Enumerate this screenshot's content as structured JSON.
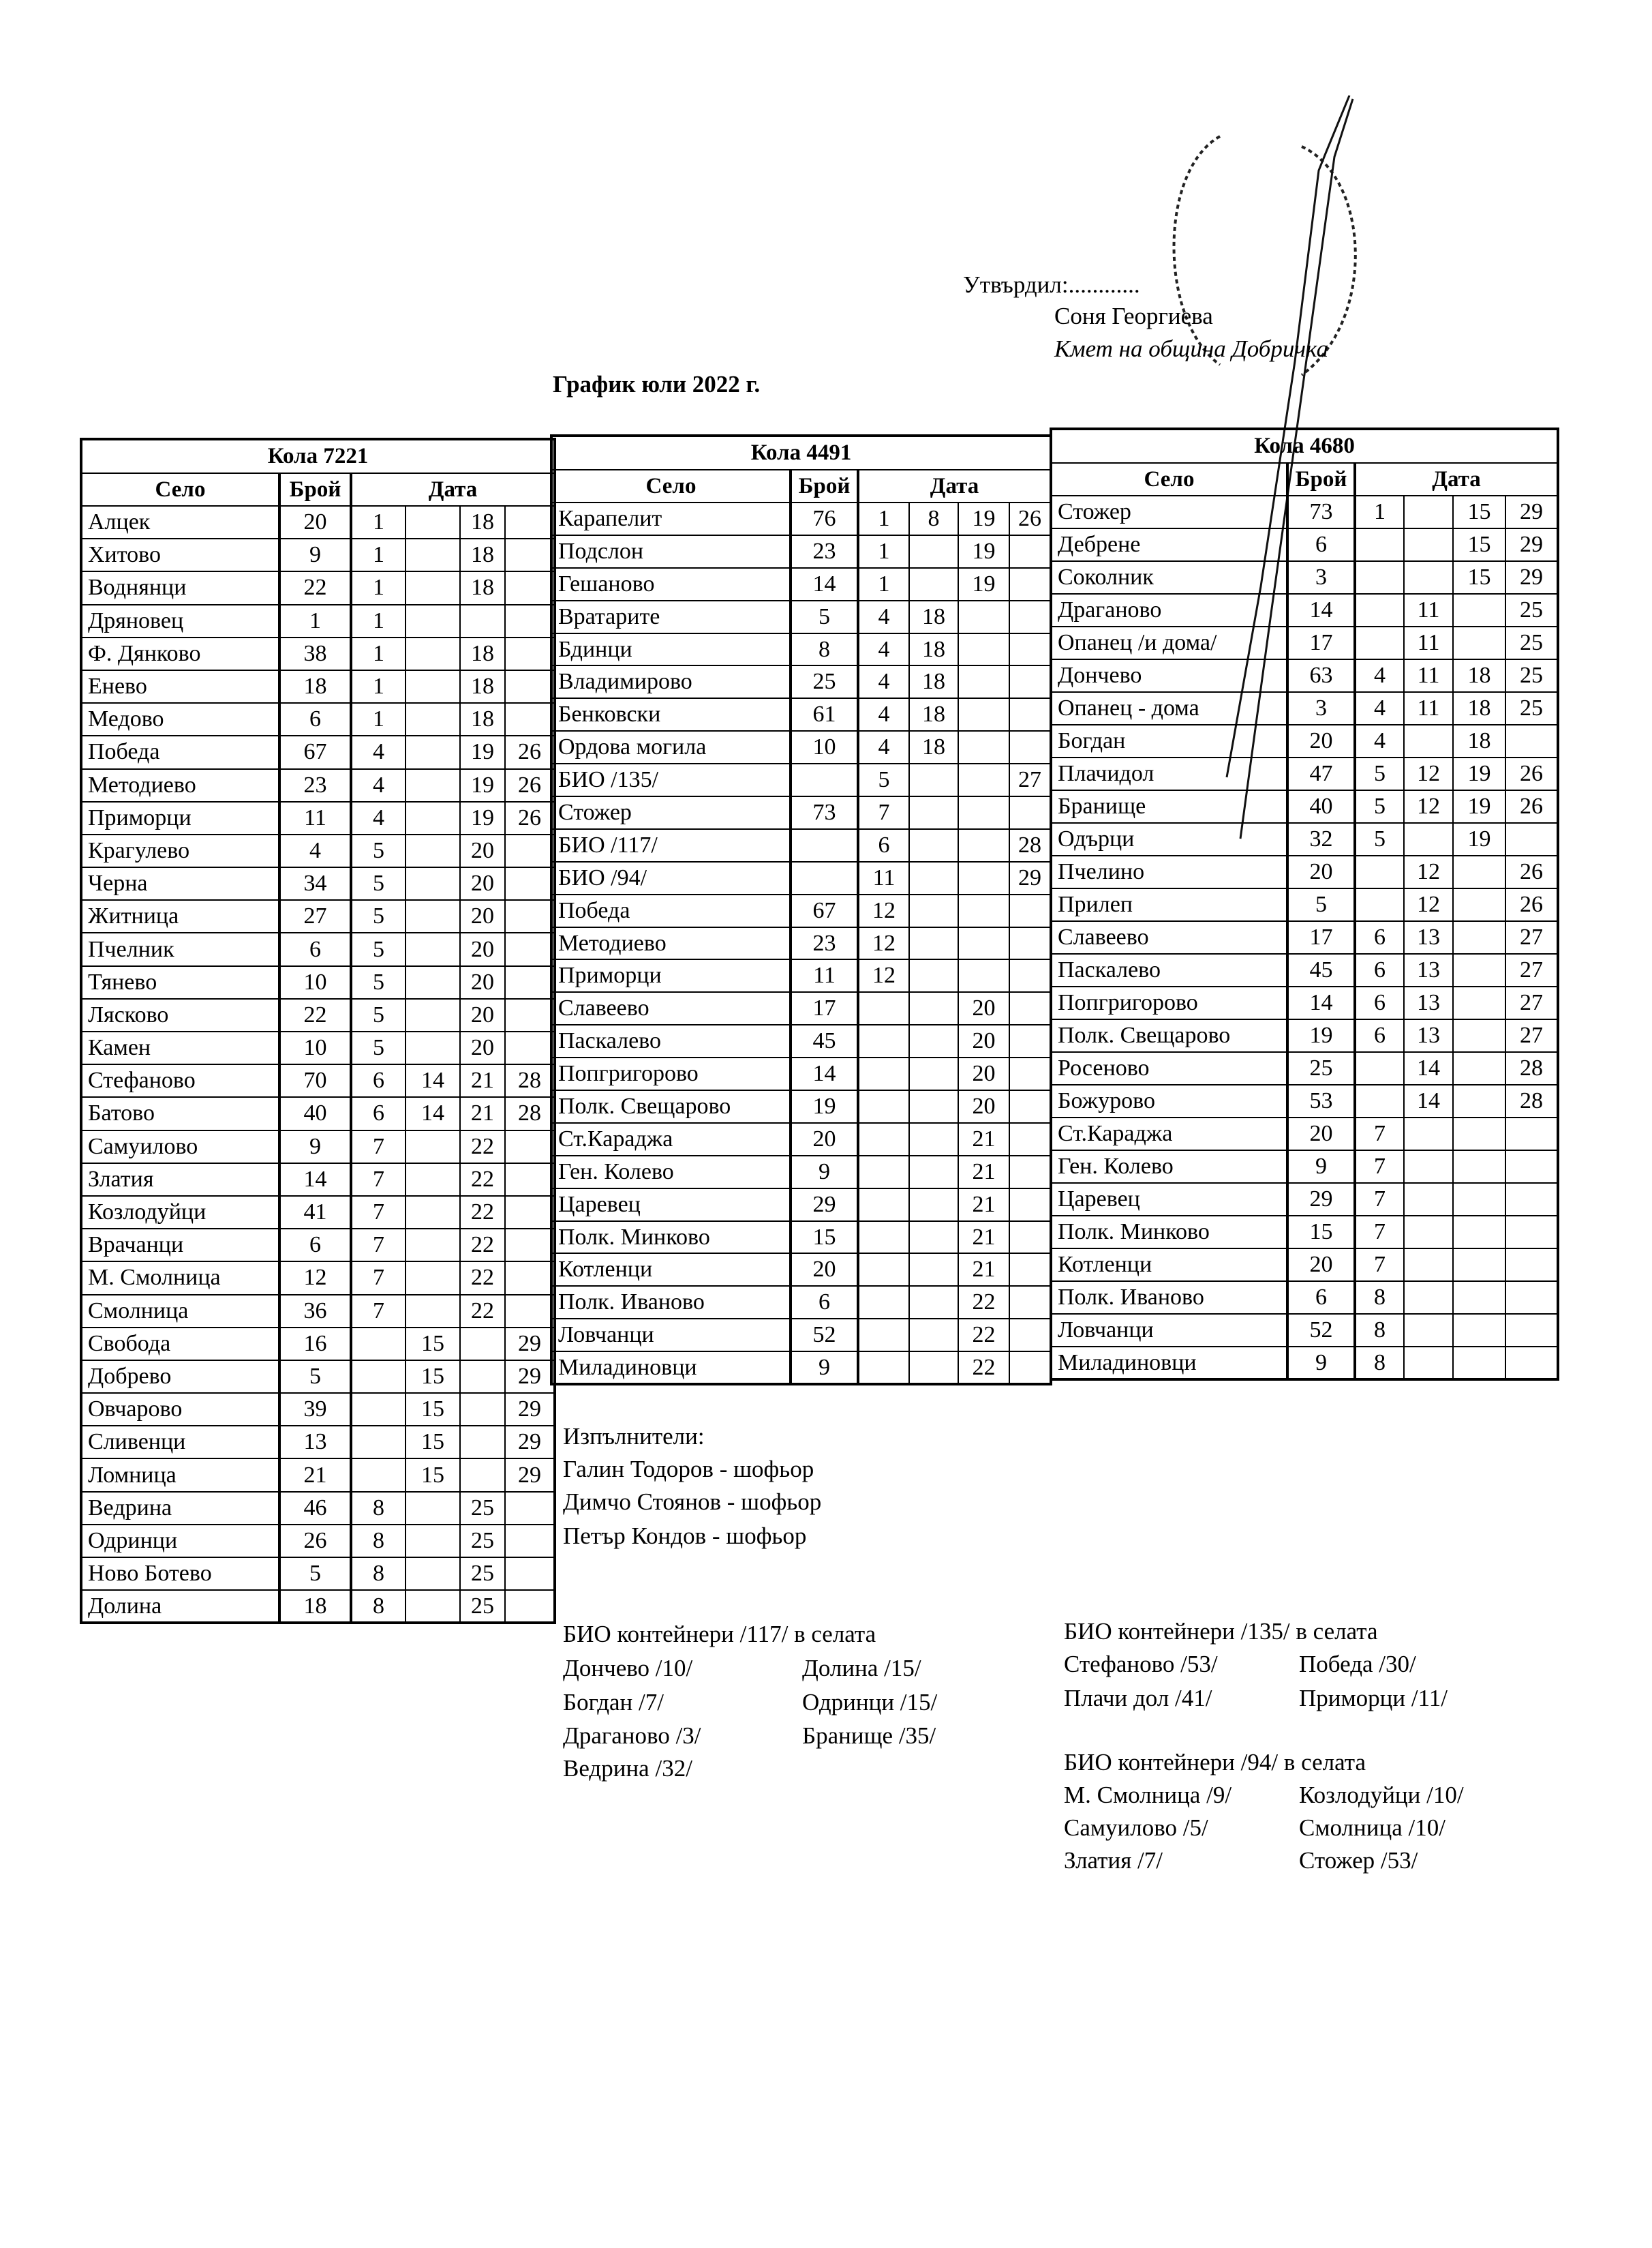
{
  "approval": {
    "approved_label": "Утвърдил:............",
    "signatory_name": "Соня Георгиева",
    "signatory_title": "Кмет  на община Добричка"
  },
  "document_title": "График юли 2022 г.",
  "column_headers": {
    "village": "Село",
    "count": "Брой",
    "date": "Дата"
  },
  "tables": [
    {
      "title": "Кола 7221",
      "rows": [
        [
          "Алцек",
          "20",
          "1",
          "",
          "18",
          ""
        ],
        [
          "Хитово",
          "9",
          "1",
          "",
          "18",
          ""
        ],
        [
          "Воднянци",
          "22",
          "1",
          "",
          "18",
          ""
        ],
        [
          "Дряновец",
          "1",
          "1",
          "",
          "",
          ""
        ],
        [
          "Ф. Дянково",
          "38",
          "1",
          "",
          "18",
          ""
        ],
        [
          "Енево",
          "18",
          "1",
          "",
          "18",
          ""
        ],
        [
          "Медово",
          "6",
          "1",
          "",
          "18",
          ""
        ],
        [
          "Победа",
          "67",
          "4",
          "",
          "19",
          "26"
        ],
        [
          "Методиево",
          "23",
          "4",
          "",
          "19",
          "26"
        ],
        [
          "Приморци",
          "11",
          "4",
          "",
          "19",
          "26"
        ],
        [
          "Крагулево",
          "4",
          "5",
          "",
          "20",
          ""
        ],
        [
          "Черна",
          "34",
          "5",
          "",
          "20",
          ""
        ],
        [
          "Житница",
          "27",
          "5",
          "",
          "20",
          ""
        ],
        [
          "Пчелник",
          "6",
          "5",
          "",
          "20",
          ""
        ],
        [
          "Тянево",
          "10",
          "5",
          "",
          "20",
          ""
        ],
        [
          "Лясково",
          "22",
          "5",
          "",
          "20",
          ""
        ],
        [
          "Камен",
          "10",
          "5",
          "",
          "20",
          ""
        ],
        [
          "Стефаново",
          "70",
          "6",
          "14",
          "21",
          "28"
        ],
        [
          "Батово",
          "40",
          "6",
          "14",
          "21",
          "28"
        ],
        [
          "Самуилово",
          "9",
          "7",
          "",
          "22",
          ""
        ],
        [
          "Златия",
          "14",
          "7",
          "",
          "22",
          ""
        ],
        [
          "Козлодуйци",
          "41",
          "7",
          "",
          "22",
          ""
        ],
        [
          "Врачанци",
          "6",
          "7",
          "",
          "22",
          ""
        ],
        [
          "М. Смолница",
          "12",
          "7",
          "",
          "22",
          ""
        ],
        [
          "Смолница",
          "36",
          "7",
          "",
          "22",
          ""
        ],
        [
          "Свобода",
          "16",
          "",
          "15",
          "",
          "29"
        ],
        [
          "Добрево",
          "5",
          "",
          "15",
          "",
          "29"
        ],
        [
          "Овчарово",
          "39",
          "",
          "15",
          "",
          "29"
        ],
        [
          "Сливенци",
          "13",
          "",
          "15",
          "",
          "29"
        ],
        [
          "Ломница",
          "21",
          "",
          "15",
          "",
          "29"
        ],
        [
          "Ведрина",
          "46",
          "8",
          "",
          "25",
          ""
        ],
        [
          "Одринци",
          "26",
          "8",
          "",
          "25",
          ""
        ],
        [
          "Ново Ботево",
          "5",
          "8",
          "",
          "25",
          ""
        ],
        [
          "Долина",
          "18",
          "8",
          "",
          "25",
          ""
        ]
      ]
    },
    {
      "title": "Кола 4491",
      "rows": [
        [
          "Карапелит",
          "76",
          "1",
          "8",
          "19",
          "26"
        ],
        [
          "Подслон",
          "23",
          "1",
          "",
          "19",
          ""
        ],
        [
          "Гешаново",
          "14",
          "1",
          "",
          "19",
          ""
        ],
        [
          "Вратарите",
          "5",
          "4",
          "18",
          "",
          ""
        ],
        [
          "Бдинци",
          "8",
          "4",
          "18",
          "",
          ""
        ],
        [
          "Владимирово",
          "25",
          "4",
          "18",
          "",
          ""
        ],
        [
          "Бенковски",
          "61",
          "4",
          "18",
          "",
          ""
        ],
        [
          "Ордова могила",
          "10",
          "4",
          "18",
          "",
          ""
        ],
        [
          "БИО /135/",
          "",
          "5",
          "",
          "",
          "27"
        ],
        [
          "Стожер",
          "73",
          "7",
          "",
          "",
          ""
        ],
        [
          "БИО /117/",
          "",
          "6",
          "",
          "",
          "28"
        ],
        [
          "БИО /94/",
          "",
          "11",
          "",
          "",
          "29"
        ],
        [
          "Победа",
          "67",
          "12",
          "",
          "",
          ""
        ],
        [
          "Методиево",
          "23",
          "12",
          "",
          "",
          ""
        ],
        [
          "Приморци",
          "11",
          "12",
          "",
          "",
          ""
        ],
        [
          "Славеево",
          "17",
          "",
          "",
          "20",
          ""
        ],
        [
          "Паскалево",
          "45",
          "",
          "",
          "20",
          ""
        ],
        [
          "Попгригорово",
          "14",
          "",
          "",
          "20",
          ""
        ],
        [
          "Полк. Свещарово",
          "19",
          "",
          "",
          "20",
          ""
        ],
        [
          "Ст.Караджа",
          "20",
          "",
          "",
          "21",
          ""
        ],
        [
          "Ген. Колево",
          "9",
          "",
          "",
          "21",
          ""
        ],
        [
          "Царевец",
          "29",
          "",
          "",
          "21",
          ""
        ],
        [
          "Полк. Минково",
          "15",
          "",
          "",
          "21",
          ""
        ],
        [
          "Котленци",
          "20",
          "",
          "",
          "21",
          ""
        ],
        [
          "Полк. Иваново",
          "6",
          "",
          "",
          "22",
          ""
        ],
        [
          "Ловчанци",
          "52",
          "",
          "",
          "22",
          ""
        ],
        [
          "Миладиновци",
          "9",
          "",
          "",
          "22",
          ""
        ]
      ]
    },
    {
      "title": "Кола 4680",
      "rows": [
        [
          "Стожер",
          "73",
          "1",
          "",
          "15",
          "29"
        ],
        [
          "Дебрене",
          "6",
          "",
          "",
          "15",
          "29"
        ],
        [
          "Соколник",
          "3",
          "",
          "",
          "15",
          "29"
        ],
        [
          "Драганово",
          "14",
          "",
          "11",
          "",
          "25"
        ],
        [
          "Опанец /и дома/",
          "17",
          "",
          "11",
          "",
          "25"
        ],
        [
          "Дончево",
          "63",
          "4",
          "11",
          "18",
          "25"
        ],
        [
          "Опанец - дома",
          "3",
          "4",
          "11",
          "18",
          "25"
        ],
        [
          "Богдан",
          "20",
          "4",
          "",
          "18",
          ""
        ],
        [
          "Плачидол",
          "47",
          "5",
          "12",
          "19",
          "26"
        ],
        [
          "Бранище",
          "40",
          "5",
          "12",
          "19",
          "26"
        ],
        [
          "Одърци",
          "32",
          "5",
          "",
          "19",
          ""
        ],
        [
          "Пчелино",
          "20",
          "",
          "12",
          "",
          "26"
        ],
        [
          "Прилеп",
          "5",
          "",
          "12",
          "",
          "26"
        ],
        [
          "Славеево",
          "17",
          "6",
          "13",
          "",
          "27"
        ],
        [
          "Паскалево",
          "45",
          "6",
          "13",
          "",
          "27"
        ],
        [
          "Попгригорово",
          "14",
          "6",
          "13",
          "",
          "27"
        ],
        [
          "Полк. Свещарово",
          "19",
          "6",
          "13",
          "",
          "27"
        ],
        [
          "Росеново",
          "25",
          "",
          "14",
          "",
          "28"
        ],
        [
          "Божурово",
          "53",
          "",
          "14",
          "",
          "28"
        ],
        [
          "Ст.Караджа",
          "20",
          "7",
          "",
          "",
          ""
        ],
        [
          "Ген. Колево",
          "9",
          "7",
          "",
          "",
          ""
        ],
        [
          "Царевец",
          "29",
          "7",
          "",
          "",
          ""
        ],
        [
          "Полк. Минково",
          "15",
          "7",
          "",
          "",
          ""
        ],
        [
          "Котленци",
          "20",
          "7",
          "",
          "",
          ""
        ],
        [
          "Полк. Иваново",
          "6",
          "8",
          "",
          "",
          ""
        ],
        [
          "Ловчанци",
          "52",
          "8",
          "",
          "",
          ""
        ],
        [
          "Миладиновци",
          "9",
          "8",
          "",
          "",
          ""
        ]
      ]
    }
  ],
  "executors": {
    "label": "Изпълнители:",
    "people": [
      "Галин Тодоров - шофьор",
      "Димчо Стоянов - шофьор",
      "Петър Кондов - шофьор"
    ]
  },
  "bio_containers": [
    {
      "title": "БИО контейнери /117/ в селата",
      "col1": [
        "Дончево /10/",
        "Богдан /7/",
        "Драганово /3/",
        "Ведрина /32/"
      ],
      "col2": [
        "Долина /15/",
        "Одринци /15/",
        "Бранище /35/"
      ]
    },
    {
      "title": "БИО контейнери /135/ в селата",
      "col1": [
        "Стефаново /53/",
        "Плачи дол /41/"
      ],
      "col2": [
        "Победа /30/",
        "Приморци /11/"
      ]
    },
    {
      "title": "БИО контейнери /94/ в селата",
      "col1": [
        "М. Смолница /9/",
        "Самуилово /5/",
        "Златия /7/"
      ],
      "col2": [
        "Козлодуйци /10/",
        "Смолница /10/",
        "Стожер /53/"
      ]
    }
  ]
}
